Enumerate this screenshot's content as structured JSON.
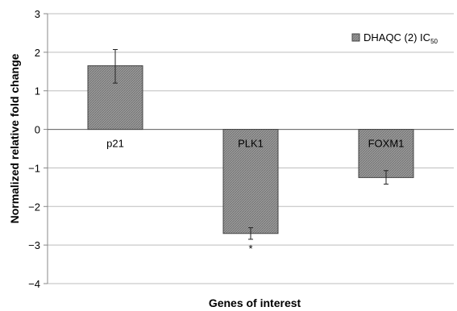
{
  "chart_data": {
    "type": "bar",
    "categories": [
      "p21",
      "PLK1",
      "FOXM1"
    ],
    "series": [
      {
        "name": "DHAQC (2) IC50",
        "name_main": "DHAQC (2) IC",
        "name_sub": "50",
        "values": [
          1.65,
          -2.7,
          -1.25
        ],
        "error_low": [
          1.2,
          -2.85,
          -1.42
        ],
        "error_high": [
          2.07,
          -2.55,
          -1.07
        ]
      }
    ],
    "significance_marks": [
      "",
      "*",
      ""
    ],
    "xlabel": "Genes of interest",
    "ylabel": "Normalized relative fold change",
    "ylim": [
      -4,
      3
    ],
    "yticks": [
      3,
      2,
      1,
      0,
      -1,
      -2,
      -3,
      -4
    ],
    "ytick_labels": [
      "3",
      "2",
      "1",
      "0",
      "−1",
      "−2",
      "−3",
      "−4"
    ],
    "grid": true,
    "legend_position": "top-right",
    "colors": {
      "bar_fill": "#8a8a8a",
      "bar_stroke": "#444444",
      "grid": "#bdbdbd",
      "axis": "#888888"
    }
  }
}
